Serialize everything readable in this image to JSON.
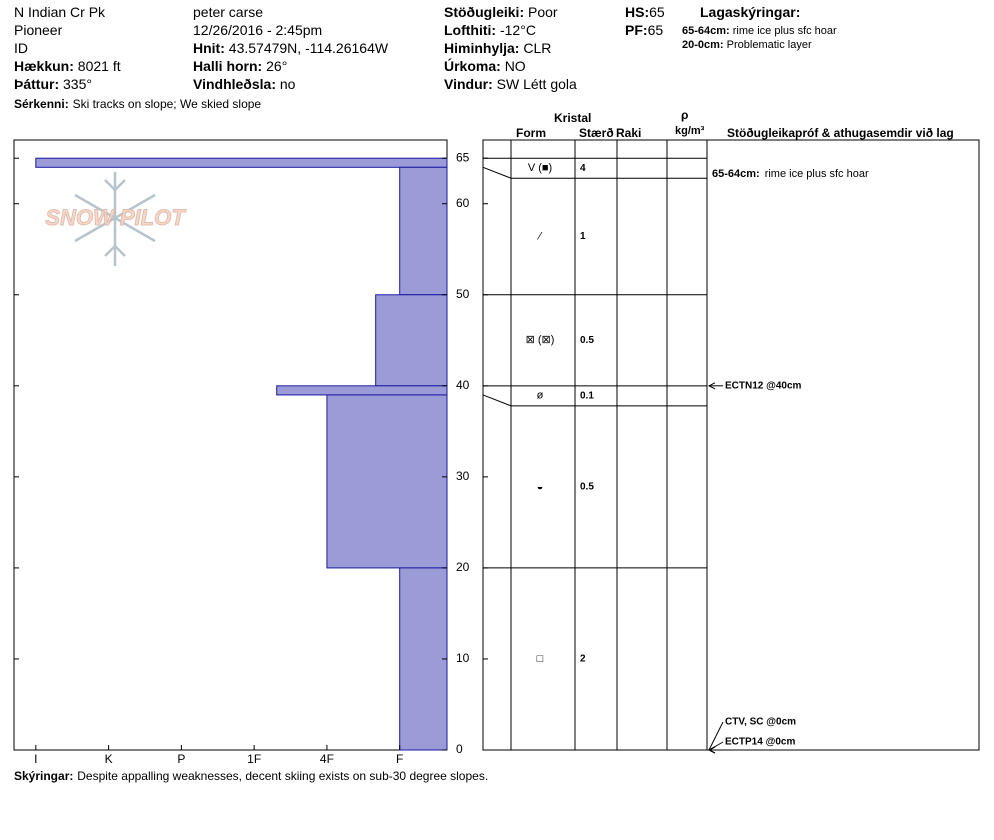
{
  "header": {
    "location": "N Indian Cr Pk",
    "range": "Pioneer",
    "state": "ID",
    "elevation": {
      "label": "Hækkun:",
      "value": "8021 ft"
    },
    "aspect": {
      "label": "Þáttur:",
      "value": "335°"
    },
    "observer": "peter carse",
    "datetime": "12/26/2016 - 2:45pm",
    "coords": {
      "label": "Hnit:",
      "value": "43.57479N, -114.26164W"
    },
    "slope": {
      "label": "Halli horn:",
      "value": "26°"
    },
    "wind_loading": {
      "label": "Vindhleðsla:",
      "value": "no"
    },
    "stability": {
      "label": "Stöðugleiki:",
      "value": "Poor"
    },
    "air_temp": {
      "label": "Lofthiti:",
      "value": "-12°C"
    },
    "sky": {
      "label": "Himinhylja:",
      "value": "CLR"
    },
    "precip": {
      "label": "Úrkoma:",
      "value": "NO"
    },
    "wind": {
      "label": "Vindur:",
      "value": "SW Létt gola"
    },
    "hs": {
      "label": "HS:",
      "value": 65
    },
    "pf": {
      "label": "PF:",
      "value": 65
    },
    "legend": {
      "title": "Lagaskýringar:",
      "items": [
        {
          "label": "65-64cm:",
          "text": "rime ice plus sfc hoar"
        },
        {
          "label": "20-0cm:",
          "text": "Problematic layer"
        }
      ]
    },
    "features": {
      "label": "Sérkenni:",
      "value": "Ski tracks on slope; We skied slope"
    }
  },
  "chart_data": {
    "type": "snow-profile",
    "logo": "SNOW PILOT",
    "ylim": [
      0,
      67
    ],
    "yticks": [
      0,
      10,
      20,
      30,
      40,
      50,
      60,
      65
    ],
    "xlim": [
      6.3,
      0.35
    ],
    "xticks": [
      {
        "value": 6,
        "label": "I"
      },
      {
        "value": 5,
        "label": "K"
      },
      {
        "value": 4,
        "label": "P"
      },
      {
        "value": 3,
        "label": "1F"
      },
      {
        "value": 2,
        "label": "4F"
      },
      {
        "value": 1,
        "label": "F"
      }
    ],
    "color": "#9b9bd8",
    "columns": {
      "crystal": "Kristal",
      "form": "Form",
      "size": "Stærð",
      "moisture": "Raki",
      "density_symbol": "ρ",
      "density_unit": "kg/m³",
      "comments": "Stöðugleikapróf & athugasemdir við lag"
    },
    "layers": [
      {
        "top": 65,
        "bottom": 64,
        "hardness": 6,
        "form": "V (■)",
        "size": 4,
        "comment": {
          "label": "65-64cm:",
          "text": "rime ice plus sfc hoar"
        }
      },
      {
        "top": 64,
        "bottom": 50,
        "hardness": 1,
        "form": "⁄",
        "size": 1
      },
      {
        "top": 50,
        "bottom": 40,
        "hardness": 1.33,
        "form": "⊠ (⊠)",
        "size": 0.5
      },
      {
        "top": 40,
        "bottom": 39,
        "hardness": 2.69,
        "form": "ø",
        "size": 0.1
      },
      {
        "top": 39,
        "bottom": 20,
        "hardness": 2,
        "form": "◒",
        "size": 0.5
      },
      {
        "top": 20,
        "bottom": 0,
        "hardness": 1,
        "form": "□",
        "size": 2
      }
    ],
    "tests": [
      {
        "text": "ECTN12 @40cm",
        "depth": 40
      },
      {
        "text": "CTV, SC @0cm",
        "depth": 0
      },
      {
        "text": "ECTP14 @0cm",
        "depth": 0
      }
    ]
  },
  "footer": {
    "label": "Skýringar:",
    "value": "Despite appalling weaknesses, decent skiing exists on sub-30 degree slopes."
  }
}
